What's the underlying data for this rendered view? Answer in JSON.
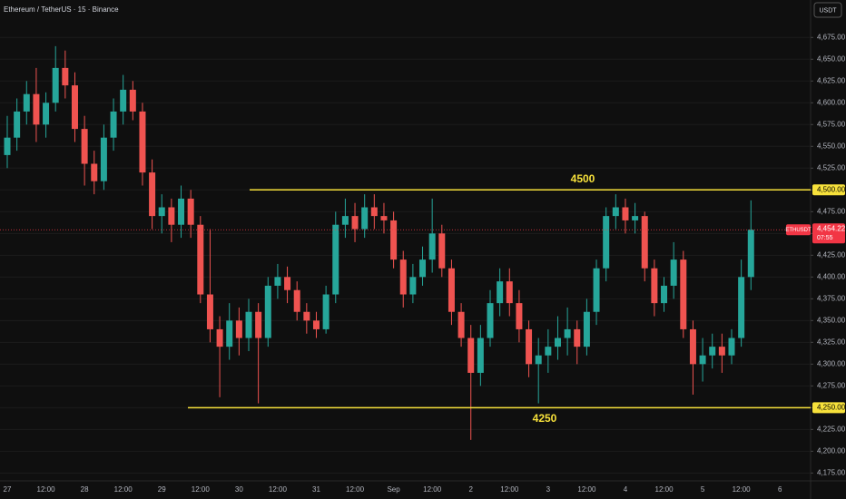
{
  "chart_data": {
    "type": "candlestick",
    "title": "Ethereum / TetherUS · 15 · Binance",
    "currency": "USDT",
    "categories": [
      "27",
      null,
      null,
      null,
      "12:00",
      null,
      null,
      null,
      "28",
      null,
      null,
      null,
      "12:00",
      null,
      null,
      null,
      "29",
      null,
      null,
      null,
      "12:00",
      null,
      null,
      null,
      "30",
      null,
      null,
      null,
      "12:00",
      null,
      null,
      null,
      "31",
      null,
      null,
      null,
      "12:00",
      null,
      null,
      null,
      "Sep",
      null,
      null,
      null,
      "12:00",
      null,
      null,
      null,
      "2",
      null,
      null,
      null,
      "12:00",
      null,
      null,
      null,
      "3",
      null,
      null,
      null,
      "12:00",
      null,
      null,
      null,
      "4",
      null,
      null,
      null,
      "12:00",
      null,
      null,
      null,
      "5",
      null,
      null,
      null,
      "12:00",
      null,
      null,
      null,
      "6"
    ],
    "open": [
      4540,
      4560,
      4590,
      4610,
      4575,
      4600,
      4640,
      4620,
      4570,
      4530,
      4510,
      4560,
      4590,
      4615,
      4590,
      4520,
      4470,
      4480,
      4460,
      4490,
      4460,
      4380,
      4340,
      4320,
      4350,
      4330,
      4360,
      4330,
      4390,
      4400,
      4385,
      4360,
      4350,
      4340,
      4380,
      4460,
      4470,
      4455,
      4480,
      4470,
      4465,
      4420,
      4380,
      4400,
      4420,
      4450,
      4410,
      4360,
      4330,
      4290,
      4330,
      4370,
      4395,
      4370,
      4340,
      4300,
      4310,
      4320,
      4330,
      4340,
      4320,
      4360,
      4410,
      4470,
      4480,
      4465,
      4470,
      4410,
      4370,
      4390,
      4420,
      4340,
      4300,
      4310,
      4320,
      4310,
      4330,
      4400,
      null,
      null,
      null
    ],
    "high": [
      4585,
      4605,
      4625,
      4640,
      4612,
      4665,
      4660,
      4635,
      4585,
      4545,
      4575,
      4605,
      4632,
      4625,
      4600,
      4535,
      4495,
      4490,
      4505,
      4500,
      4470,
      4455,
      4355,
      4370,
      4365,
      4375,
      4370,
      4400,
      4415,
      4412,
      4395,
      4370,
      4360,
      4390,
      4475,
      4490,
      4485,
      4495,
      4495,
      4485,
      4475,
      4430,
      4415,
      4435,
      4490,
      4460,
      4420,
      4370,
      4345,
      4345,
      4385,
      4410,
      4410,
      4385,
      4350,
      4330,
      4340,
      4355,
      4365,
      4350,
      4375,
      4420,
      4480,
      4495,
      4490,
      4485,
      4475,
      4420,
      4400,
      4440,
      4430,
      4350,
      4330,
      4335,
      4335,
      4340,
      4420,
      4488,
      null,
      null,
      null
    ],
    "low": [
      4525,
      4545,
      4575,
      4555,
      4560,
      4590,
      4605,
      4555,
      4505,
      4495,
      4500,
      4545,
      4575,
      4580,
      4505,
      4455,
      4450,
      4440,
      4445,
      4445,
      4370,
      4325,
      4262,
      4305,
      4310,
      4315,
      4255,
      4320,
      4375,
      4370,
      4350,
      4335,
      4330,
      4335,
      4370,
      4445,
      4440,
      4445,
      4455,
      4450,
      4410,
      4365,
      4370,
      4390,
      4405,
      4400,
      4345,
      4320,
      4213,
      4275,
      4320,
      4355,
      4355,
      4325,
      4285,
      4255,
      4290,
      4305,
      4310,
      4300,
      4310,
      4345,
      4395,
      4455,
      4450,
      4450,
      4395,
      4355,
      4360,
      4375,
      4330,
      4265,
      4280,
      4295,
      4290,
      4300,
      4320,
      4385,
      null,
      null,
      null
    ],
    "close": [
      4560,
      4590,
      4610,
      4575,
      4600,
      4640,
      4620,
      4570,
      4530,
      4510,
      4560,
      4590,
      4615,
      4590,
      4520,
      4470,
      4480,
      4460,
      4490,
      4460,
      4380,
      4340,
      4320,
      4350,
      4330,
      4360,
      4330,
      4390,
      4400,
      4385,
      4360,
      4350,
      4340,
      4380,
      4460,
      4470,
      4455,
      4480,
      4470,
      4465,
      4420,
      4380,
      4400,
      4420,
      4450,
      4410,
      4360,
      4330,
      4290,
      4330,
      4370,
      4395,
      4370,
      4340,
      4300,
      4310,
      4320,
      4330,
      4340,
      4320,
      4360,
      4410,
      4470,
      4480,
      4465,
      4470,
      4410,
      4370,
      4390,
      4420,
      4340,
      4300,
      4310,
      4320,
      4310,
      4330,
      4400,
      4454.22,
      null,
      null,
      null
    ],
    "up_color": "#26a69a",
    "down_color": "#ef5350",
    "ylim": [
      4166,
      4718
    ],
    "yticks": [
      {
        "value": 4175,
        "label": "4,175.00"
      },
      {
        "value": 4200,
        "label": "4,200.00"
      },
      {
        "value": 4225,
        "label": "4,225.00"
      },
      {
        "value": 4250,
        "label": "4,250.00"
      },
      {
        "value": 4275,
        "label": "4,275.00"
      },
      {
        "value": 4300,
        "label": "4,300.00"
      },
      {
        "value": 4325,
        "label": "4,325.00"
      },
      {
        "value": 4350,
        "label": "4,350.00"
      },
      {
        "value": 4375,
        "label": "4,375.00"
      },
      {
        "value": 4400,
        "label": "4,400.00"
      },
      {
        "value": 4425,
        "label": "4,425.00"
      },
      {
        "value": 4450,
        "label": "4,450.00"
      },
      {
        "value": 4475,
        "label": "4,475.00"
      },
      {
        "value": 4500,
        "label": "4,500.00"
      },
      {
        "value": 4525,
        "label": "4,525.00"
      },
      {
        "value": 4550,
        "label": "4,550.00"
      },
      {
        "value": 4575,
        "label": "4,575.00"
      },
      {
        "value": 4600,
        "label": "4,600.00"
      },
      {
        "value": 4625,
        "label": "4,625.00"
      },
      {
        "value": 4650,
        "label": "4,650.00"
      },
      {
        "value": 4675,
        "label": "4,675.00"
      }
    ],
    "grid": true,
    "levels": [
      {
        "value": 4500,
        "axis_label": "4,500.00",
        "color": "#f7e13b"
      },
      {
        "value": 4250,
        "axis_label": "4,250.00",
        "color": "#f7e13b"
      }
    ],
    "last_price": {
      "value": 4454.22,
      "label": "4,454.22",
      "symbol": "ETHUSDT",
      "countdown": "07:55",
      "color": "#f23645"
    }
  }
}
